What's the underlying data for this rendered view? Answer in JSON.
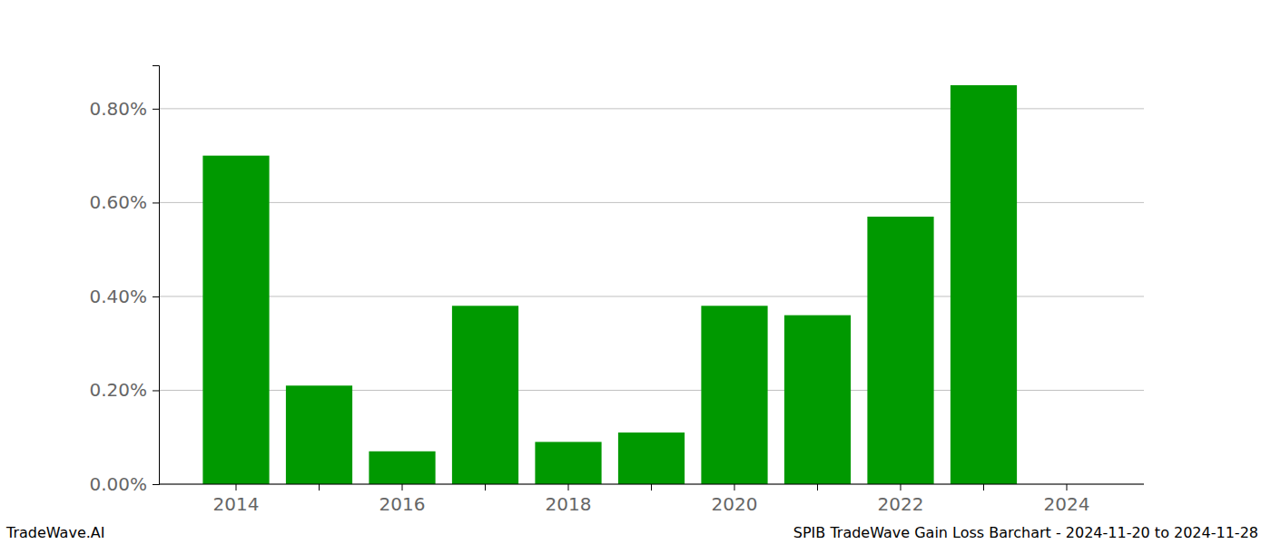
{
  "chart_data": {
    "type": "bar",
    "title": "SPIB TradeWave Gain Loss Barchart - 2024-11-20 to 2024-11-28",
    "annotations": [
      "TradeWave.AI"
    ],
    "categories": [
      "2014",
      null,
      "2016",
      null,
      "2018",
      null,
      "2020",
      null,
      "2022",
      null,
      "2024"
    ],
    "values": [
      0.7,
      0.21,
      0.07,
      0.38,
      0.09,
      0.11,
      0.38,
      0.36,
      0.57,
      0.85,
      0
    ],
    "color": "#009900",
    "ylim": [
      0,
      0.8925
    ],
    "yticks": [
      {
        "value": 0,
        "label": "0.00%"
      },
      {
        "value": 0.2,
        "label": "0.20%"
      },
      {
        "value": 0.4,
        "label": "0.40%"
      },
      {
        "value": 0.6,
        "label": "0.60%"
      },
      {
        "value": 0.8,
        "label": "0.80%"
      }
    ],
    "grid": true
  }
}
